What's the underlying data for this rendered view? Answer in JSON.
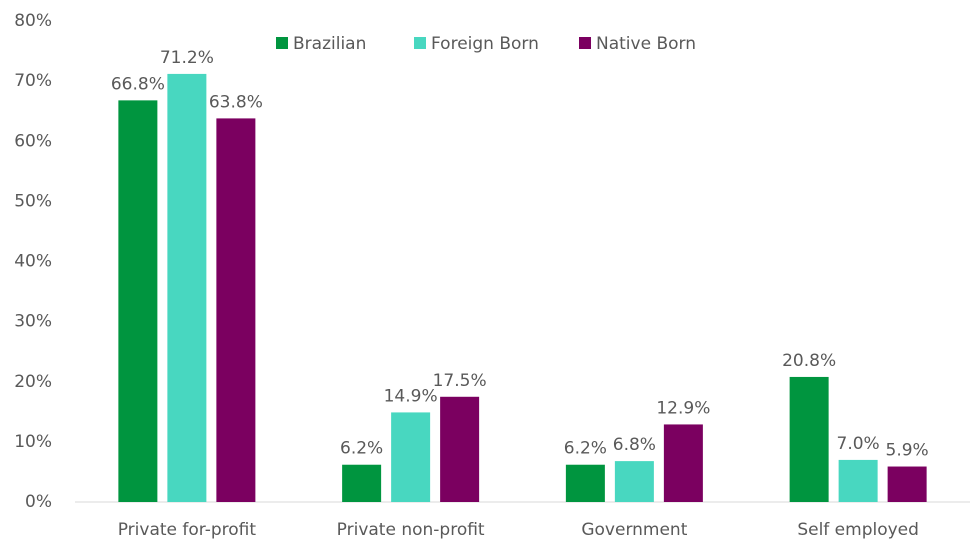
{
  "chart_data": {
    "type": "bar",
    "categories": [
      "Private for-profit",
      "Private non-profit",
      "Government",
      "Self employed"
    ],
    "series": [
      {
        "name": "Brazilian",
        "color": "#00953f",
        "values": [
          66.8,
          6.2,
          6.2,
          20.8
        ],
        "value_labels": [
          "66.8%",
          "6.2%",
          "6.2%",
          "20.8%"
        ]
      },
      {
        "name": "Foreign Born",
        "color": "#48d7c0",
        "values": [
          71.2,
          14.9,
          6.8,
          7.0
        ],
        "value_labels": [
          "71.2%",
          "14.9%",
          "6.8%",
          "7.0%"
        ]
      },
      {
        "name": "Native Born",
        "color": "#7b0060",
        "values": [
          63.8,
          17.5,
          12.9,
          5.9
        ],
        "value_labels": [
          "63.8%",
          "17.5%",
          "12.9%",
          "5.9%"
        ]
      }
    ],
    "ylim": [
      0,
      80
    ],
    "yticks": [
      {
        "value": 0,
        "label": "0%"
      },
      {
        "value": 10,
        "label": "10%"
      },
      {
        "value": 20,
        "label": "20%"
      },
      {
        "value": 30,
        "label": "30%"
      },
      {
        "value": 40,
        "label": "40%"
      },
      {
        "value": 50,
        "label": "50%"
      },
      {
        "value": 60,
        "label": "60%"
      },
      {
        "value": 70,
        "label": "70%"
      },
      {
        "value": 80,
        "label": "80%"
      }
    ],
    "legend": "top"
  }
}
